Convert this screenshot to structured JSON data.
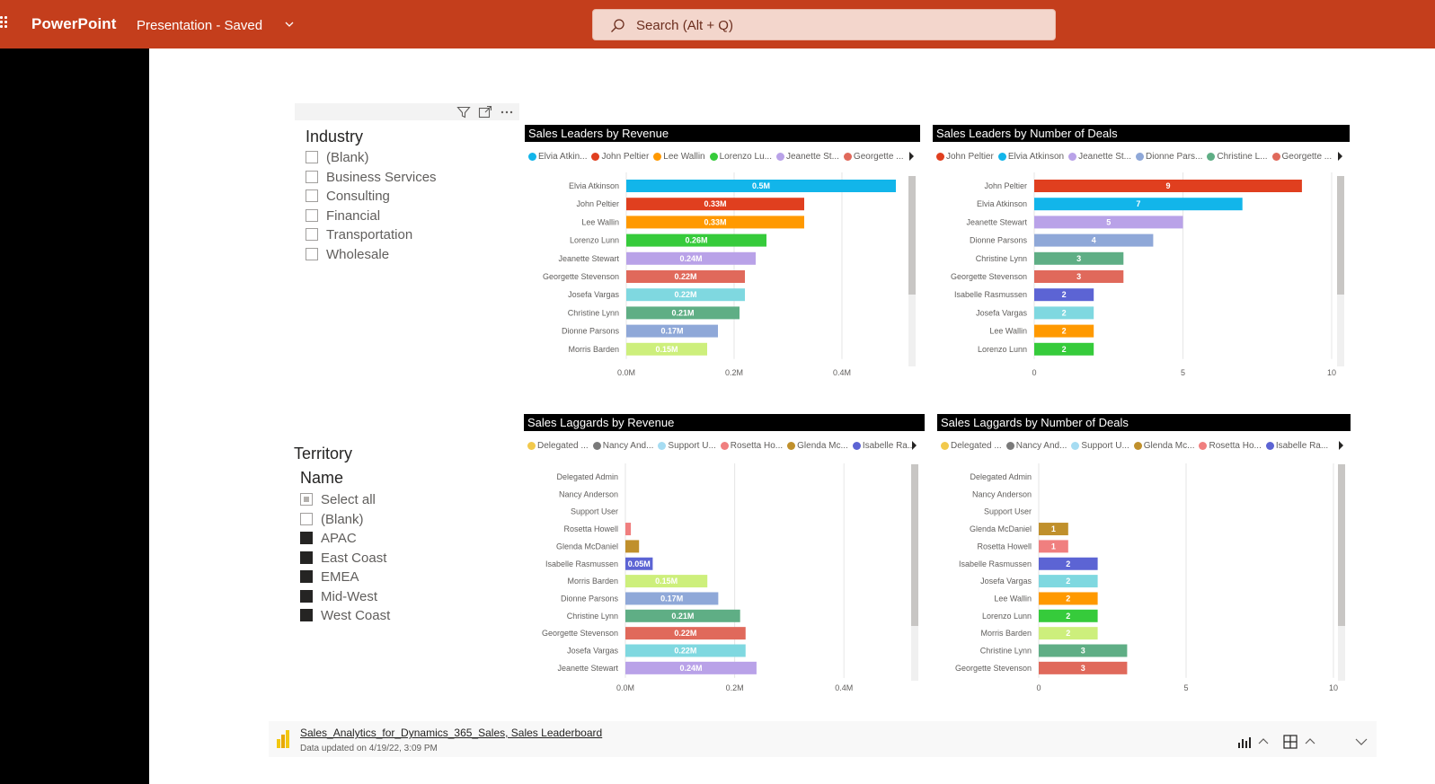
{
  "topbar": {
    "app_name": "PowerPoint",
    "doc_title": "Presentation  -  Saved",
    "search_placeholder": "Search (Alt + Q)",
    "color": "#c43e1c"
  },
  "industry_slicer": {
    "title": "Industry",
    "items": [
      "(Blank)",
      "Business Services",
      "Consulting",
      "Financial",
      "Transportation",
      "Wholesale"
    ]
  },
  "territory_slicer": {
    "title": "Territory",
    "subtitle": "Name",
    "items": [
      {
        "label": "Select all",
        "state": "partial"
      },
      {
        "label": "(Blank)",
        "state": "unchecked"
      },
      {
        "label": "APAC",
        "state": "checked"
      },
      {
        "label": "East Coast",
        "state": "checked"
      },
      {
        "label": "EMEA",
        "state": "checked"
      },
      {
        "label": "Mid-West",
        "state": "checked"
      },
      {
        "label": "West Coast",
        "state": "checked"
      }
    ]
  },
  "bottom_bar": {
    "report_name": "Sales_Analytics_for_Dynamics_365_Sales, Sales Leaderboard",
    "updated": "Data updated on 4/19/22, 3:09 PM"
  },
  "chart_data": [
    {
      "type": "bar",
      "orientation": "horizontal",
      "title": "Sales Leaders by Revenue",
      "legend": [
        {
          "name": "Elvia Atkin...",
          "color": "#12b5ea"
        },
        {
          "name": "John Peltier",
          "color": "#e03f1f"
        },
        {
          "name": "Lee Wallin",
          "color": "#ff9900"
        },
        {
          "name": "Lorenzo Lu...",
          "color": "#36cb3b"
        },
        {
          "name": "Jeanette St...",
          "color": "#b9a2e8"
        },
        {
          "name": "Georgette ...",
          "color": "#e0695b"
        }
      ],
      "categories": [
        "Elvia Atkinson",
        "John Peltier",
        "Lee Wallin",
        "Lorenzo Lunn",
        "Jeanette Stewart",
        "Georgette Stevenson",
        "Josefa Vargas",
        "Christine Lynn",
        "Dionne Parsons",
        "Morris Barden"
      ],
      "values": [
        0.5,
        0.33,
        0.33,
        0.26,
        0.24,
        0.22,
        0.22,
        0.21,
        0.17,
        0.15
      ],
      "labels": [
        "0.5M",
        "0.33M",
        "0.33M",
        "0.26M",
        "0.24M",
        "0.22M",
        "0.22M",
        "0.21M",
        "0.17M",
        "0.15M"
      ],
      "colors": [
        "#12b5ea",
        "#e03f1f",
        "#ff9900",
        "#36cb3b",
        "#b9a2e8",
        "#e0695b",
        "#7fd8e0",
        "#5fae85",
        "#8fa8d8",
        "#cdef7c"
      ],
      "xlim": [
        0,
        0.5
      ],
      "xticks": [
        0,
        0.2,
        0.4
      ],
      "xtick_labels": [
        "0.0M",
        "0.2M",
        "0.4M"
      ]
    },
    {
      "type": "bar",
      "orientation": "horizontal",
      "title": "Sales Leaders by Number of Deals",
      "legend": [
        {
          "name": "John Peltier",
          "color": "#e03f1f"
        },
        {
          "name": "Elvia Atkinson",
          "color": "#12b5ea"
        },
        {
          "name": "Jeanette St...",
          "color": "#b9a2e8"
        },
        {
          "name": "Dionne Pars...",
          "color": "#8fa8d8"
        },
        {
          "name": "Christine L...",
          "color": "#5fae85"
        },
        {
          "name": "Georgette ...",
          "color": "#e0695b"
        }
      ],
      "categories": [
        "John Peltier",
        "Elvia Atkinson",
        "Jeanette Stewart",
        "Dionne Parsons",
        "Christine Lynn",
        "Georgette Stevenson",
        "Isabelle Rasmussen",
        "Josefa Vargas",
        "Lee Wallin",
        "Lorenzo Lunn"
      ],
      "values": [
        9,
        7,
        5,
        4,
        3,
        3,
        2,
        2,
        2,
        2
      ],
      "labels": [
        "9",
        "7",
        "5",
        "4",
        "3",
        "3",
        "2",
        "2",
        "2",
        "2"
      ],
      "colors": [
        "#e03f1f",
        "#12b5ea",
        "#b9a2e8",
        "#8fa8d8",
        "#5fae85",
        "#e0695b",
        "#5c64d4",
        "#7fd8e0",
        "#ff9900",
        "#36cb3b"
      ],
      "xlim": [
        0,
        10
      ],
      "xticks": [
        0,
        5,
        10
      ],
      "xtick_labels": [
        "0",
        "5",
        "10"
      ]
    },
    {
      "type": "bar",
      "orientation": "horizontal",
      "title": "Sales Laggards by Revenue",
      "legend": [
        {
          "name": "Delegated ...",
          "color": "#f2c94c"
        },
        {
          "name": "Nancy And...",
          "color": "#7a7a7a"
        },
        {
          "name": "Support U...",
          "color": "#a6dcf2"
        },
        {
          "name": "Rosetta Ho...",
          "color": "#f07f7f"
        },
        {
          "name": "Glenda Mc...",
          "color": "#c0902c"
        },
        {
          "name": "Isabelle Ra...",
          "color": "#5c64d4"
        }
      ],
      "categories": [
        "Delegated Admin",
        "Nancy Anderson",
        "Support User",
        "Rosetta Howell",
        "Glenda McDaniel",
        "Isabelle Rasmussen",
        "Morris Barden",
        "Dionne Parsons",
        "Christine Lynn",
        "Georgette Stevenson",
        "Josefa Vargas",
        "Jeanette Stewart"
      ],
      "values": [
        0,
        0,
        0,
        0.01,
        0.025,
        0.05,
        0.15,
        0.17,
        0.21,
        0.22,
        0.22,
        0.24
      ],
      "labels": [
        "",
        "",
        "",
        "",
        "",
        "0.05M",
        "0.15M",
        "0.17M",
        "0.21M",
        "0.22M",
        "0.22M",
        "0.24M"
      ],
      "colors": [
        "#f2c94c",
        "#7a7a7a",
        "#a6dcf2",
        "#f07f7f",
        "#c0902c",
        "#5c64d4",
        "#cdef7c",
        "#8fa8d8",
        "#5fae85",
        "#e0695b",
        "#7fd8e0",
        "#b9a2e8"
      ],
      "xlim": [
        0,
        0.5
      ],
      "xticks": [
        0,
        0.2,
        0.4
      ],
      "xtick_labels": [
        "0.0M",
        "0.2M",
        "0.4M"
      ]
    },
    {
      "type": "bar",
      "orientation": "horizontal",
      "title": "Sales Laggards by Number of Deals",
      "legend": [
        {
          "name": "Delegated ...",
          "color": "#f2c94c"
        },
        {
          "name": "Nancy And...",
          "color": "#7a7a7a"
        },
        {
          "name": "Support U...",
          "color": "#a6dcf2"
        },
        {
          "name": "Glenda Mc...",
          "color": "#c0902c"
        },
        {
          "name": "Rosetta Ho...",
          "color": "#f07f7f"
        },
        {
          "name": "Isabelle Ra...",
          "color": "#5c64d4"
        }
      ],
      "categories": [
        "Delegated Admin",
        "Nancy Anderson",
        "Support User",
        "Glenda McDaniel",
        "Rosetta Howell",
        "Isabelle Rasmussen",
        "Josefa Vargas",
        "Lee Wallin",
        "Lorenzo Lunn",
        "Morris Barden",
        "Christine Lynn",
        "Georgette Stevenson"
      ],
      "values": [
        0,
        0,
        0,
        1,
        1,
        2,
        2,
        2,
        2,
        2,
        3,
        3
      ],
      "labels": [
        "",
        "",
        "",
        "1",
        "1",
        "2",
        "2",
        "2",
        "2",
        "2",
        "3",
        "3"
      ],
      "colors": [
        "#f2c94c",
        "#7a7a7a",
        "#a6dcf2",
        "#c0902c",
        "#f07f7f",
        "#5c64d4",
        "#7fd8e0",
        "#ff9900",
        "#36cb3b",
        "#cdef7c",
        "#5fae85",
        "#e0695b"
      ],
      "xlim": [
        0,
        10
      ],
      "xticks": [
        0,
        5,
        10
      ],
      "xtick_labels": [
        "0",
        "5",
        "10"
      ]
    }
  ]
}
